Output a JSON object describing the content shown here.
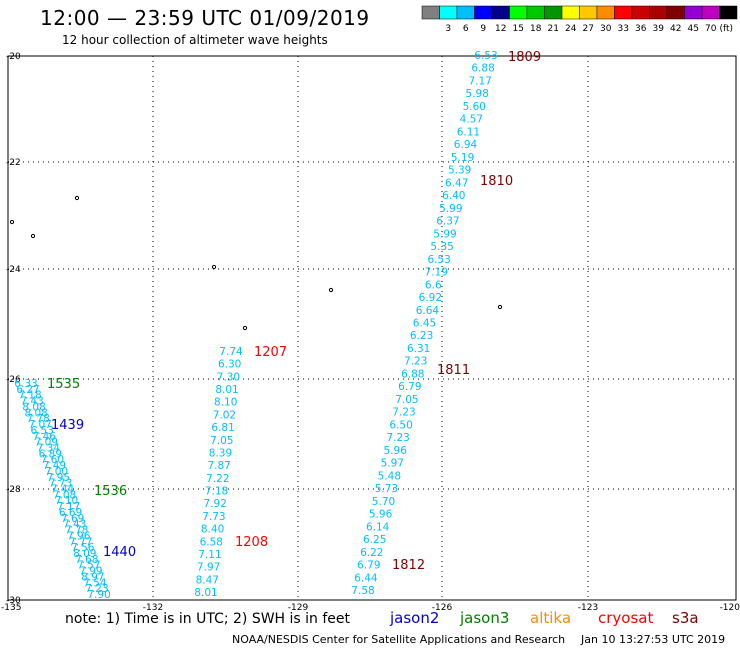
{
  "header": {
    "title": "12:00 — 23:59 UTC 01/09/2019",
    "subtitle": "12 hour collection of altimeter wave heights"
  },
  "legend": {
    "unit": "(ft)",
    "colors": [
      "#808080",
      "#00ffff",
      "#00bfff",
      "#0000ff",
      "#00008b",
      "#00ff00",
      "#00c800",
      "#009600",
      "#ffff00",
      "#ffc800",
      "#ff8c00",
      "#ff0000",
      "#cd0000",
      "#aa0000",
      "#800000",
      "#9400d3",
      "#c000c0",
      "#000000"
    ],
    "labels": [
      "3",
      "6",
      "9",
      "12",
      "15",
      "18",
      "21",
      "24",
      "27",
      "30",
      "33",
      "36",
      "39",
      "42",
      "45",
      "70"
    ]
  },
  "axes": {
    "lat_labels": [
      "-20",
      "-22",
      "-24",
      "-26",
      "-28",
      "-30"
    ],
    "lon_labels": [
      "-135",
      "-132",
      "-129",
      "-126",
      "-123",
      "-120"
    ]
  },
  "tracks": {
    "track_1809": [
      "6.53",
      "6.88",
      "7.17",
      "5.98",
      "5.60",
      "4.57",
      "6.11",
      "6.94",
      "5.19",
      "5.39",
      "6.47",
      "6.40",
      "5.99",
      "6.37",
      "5.99",
      "5.35",
      "6.53",
      "7.19",
      "6.6",
      "6.92",
      "6.64",
      "6.45",
      "6.23",
      "6.31",
      "7.23",
      "6.88",
      "6.79",
      "7.05",
      "7.23",
      "6.50",
      "7.23",
      "5.96",
      "5.97",
      "5.48",
      "5.73",
      "5.70",
      "5.96",
      "6.14",
      "6.25",
      "6.22",
      "6.79",
      "6.44",
      "7.58"
    ],
    "track_1207": [
      "7.74",
      "6.30",
      "7.30",
      "8.01",
      "8.10",
      "7.02",
      "6.81",
      "7.05",
      "8.39",
      "7.87",
      "7.22",
      "7.18",
      "7.92",
      "7.73",
      "8.40",
      "6.58",
      "7.11",
      "7.97",
      "8.47",
      "8.01"
    ],
    "track_1535": [
      "6.33",
      "6.27",
      "7.18",
      "7.43",
      "8.08",
      "8.08",
      "7.78",
      "7.07",
      "6.53",
      "7.46",
      "7.09",
      "7.34",
      "6.89",
      "7.60",
      "7.49",
      "7.00",
      "7.95",
      "7.73",
      "7.44",
      "7.08",
      "7.10",
      "7.17",
      "6.69",
      "7.69",
      "7.43",
      "7.78",
      "7.96",
      "7.77",
      "7.56",
      "8.09",
      "7.68",
      "7.57",
      "7.99",
      "8.97",
      "7.54",
      "7.23",
      "7.90"
    ]
  },
  "pass_labels": {
    "p1809": "1809",
    "p1810": "1810",
    "p1811": "1811",
    "p1812": "1812",
    "p1207": "1207",
    "p1208": "1208",
    "p1535": "1535",
    "p1439": "1439",
    "p1536": "1536",
    "p1440": "1440"
  },
  "note": {
    "prefix": "note:  1) Time is in UTC;  2) SWH is in feet",
    "jason2": "jason2",
    "jason3": "jason3",
    "altika": "altika",
    "cryosat": "cryosat",
    "s3a": "s3a"
  },
  "footer": {
    "credit": "NOAA/NESDIS Center for Satellite Applications and Research",
    "timestamp": "Jan 10 13:27:53 UTC 2019"
  },
  "colors": {
    "wave_value": "#00bfff",
    "jason2": "#0000cd",
    "jason3": "#008000",
    "altika": "#ff8c00",
    "cryosat": "#ff0000",
    "s3a": "#800000"
  }
}
